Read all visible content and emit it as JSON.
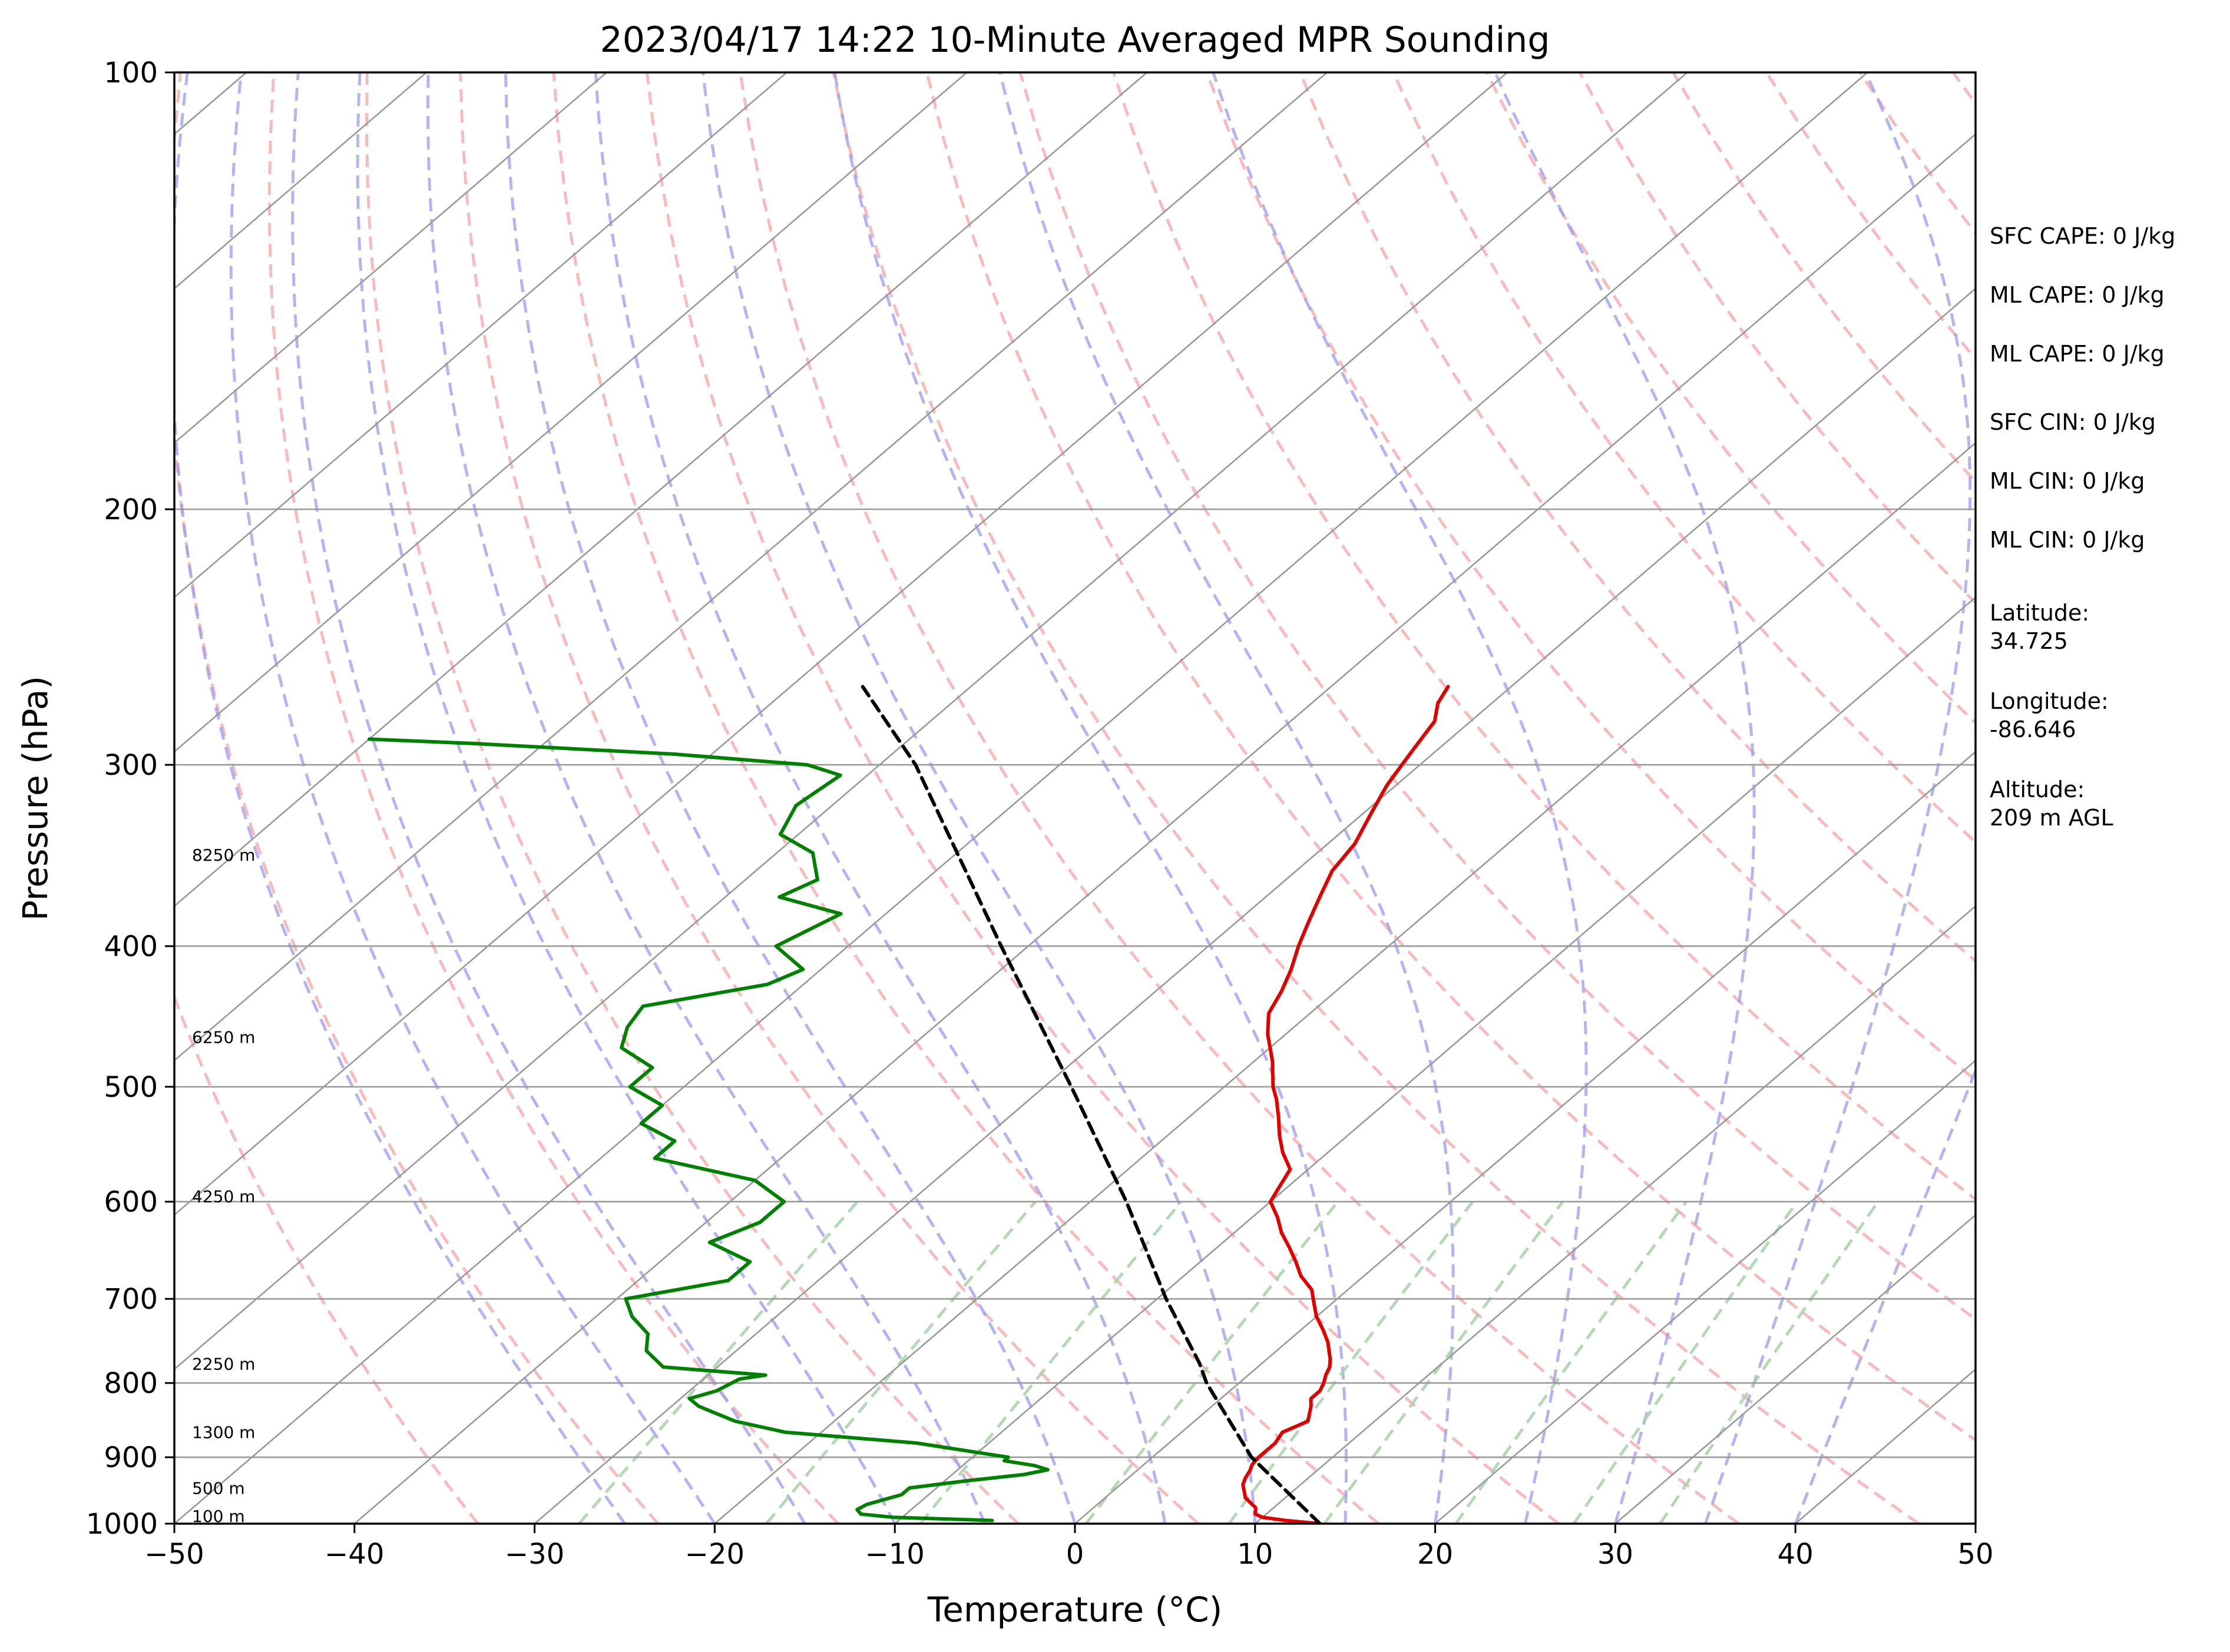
{
  "chart_data": {
    "type": "line",
    "title": "2023/04/17 14:22 10-Minute Averaged MPR Sounding",
    "xlabel": "Temperature (°C)",
    "ylabel": "Pressure (hPa)",
    "xlim": [
      -50,
      50
    ],
    "ylim": [
      1000,
      100
    ],
    "y_scale": "log",
    "skew_degrees_per_decade": 94,
    "x_ticks": [
      -50,
      -40,
      -30,
      -20,
      -10,
      0,
      10,
      20,
      30,
      40,
      50
    ],
    "x_tick_labels": [
      "−50",
      "−40",
      "−30",
      "−20",
      "−10",
      "0",
      "10",
      "20",
      "30",
      "40",
      "50"
    ],
    "y_ticks": [
      1000,
      900,
      800,
      700,
      600,
      500,
      400,
      300,
      200,
      100
    ],
    "y_tick_labels": [
      "1000",
      "900",
      "800",
      "700",
      "600",
      "500",
      "400",
      "300",
      "200",
      "100"
    ],
    "grid": true,
    "colors": {
      "temperature": "#e00000",
      "dewpoint": "#008000",
      "parcel": "#000000",
      "isotherm": "#999999",
      "dry_adiabat": "#f5a3a3",
      "moist_adiabat": "#9b9bf0",
      "mixing_ratio": "#a5d3a5"
    },
    "series": [
      {
        "key": "temperature",
        "p": [
          1000,
          995,
          990,
          985,
          975,
          960,
          950,
          940,
          930,
          920,
          910,
          900,
          880,
          865,
          850,
          840,
          830,
          820,
          810,
          800,
          790,
          780,
          770,
          760,
          750,
          735,
          720,
          705,
          690,
          675,
          660,
          645,
          630,
          615,
          600,
          585,
          570,
          555,
          540,
          525,
          510,
          500,
          480,
          460,
          445,
          430,
          415,
          400,
          385,
          370,
          355,
          340,
          325,
          310,
          300,
          290,
          280,
          272,
          265
        ],
        "t": [
          13.6,
          11.5,
          10.0,
          9.4,
          9.0,
          7.8,
          7.3,
          6.8,
          6.5,
          6.3,
          6.0,
          5.9,
          5.9,
          5.6,
          6.3,
          5.9,
          5.5,
          5.0,
          5.0,
          4.7,
          4.3,
          4.0,
          3.5,
          2.9,
          2.3,
          1.2,
          0.0,
          -1.0,
          -2.0,
          -3.5,
          -4.7,
          -6.0,
          -7.4,
          -8.6,
          -10.0,
          -10.5,
          -11.0,
          -12.5,
          -13.8,
          -15.0,
          -16.3,
          -17.3,
          -19.0,
          -21.0,
          -22.3,
          -23.0,
          -23.9,
          -25.0,
          -26.0,
          -27.0,
          -28.0,
          -28.5,
          -29.5,
          -30.5,
          -31.0,
          -31.5,
          -32.0,
          -33.0,
          -33.5
        ]
      },
      {
        "key": "dewpoint",
        "p": [
          995,
          990,
          985,
          978,
          970,
          955,
          945,
          935,
          925,
          918,
          912,
          905,
          900,
          880,
          865,
          850,
          840,
          830,
          820,
          810,
          795,
          790,
          780,
          760,
          740,
          720,
          700,
          680,
          660,
          640,
          620,
          600,
          580,
          560,
          545,
          530,
          515,
          500,
          485,
          470,
          455,
          440,
          425,
          415,
          400,
          380,
          370,
          360,
          345,
          335,
          320,
          305,
          300,
          295,
          290,
          288
        ],
        "t": [
          -4.8,
          -10.5,
          -12.5,
          -13.0,
          -12.8,
          -11.5,
          -11.5,
          -9.0,
          -6.0,
          -5.0,
          -6.0,
          -8.0,
          -8.0,
          -14.0,
          -22.0,
          -25.5,
          -27.0,
          -28.5,
          -29.5,
          -28.5,
          -28.0,
          -26.8,
          -33.0,
          -35.0,
          -36.0,
          -38.0,
          -39.5,
          -35.0,
          -35.0,
          -38.5,
          -37.0,
          -37.0,
          -40.0,
          -47.0,
          -47.0,
          -50.0,
          -50.0,
          -53.0,
          -53.0,
          -56.0,
          -57.0,
          -57.5,
          -52.0,
          -51.0,
          -54.0,
          -52.5,
          -57.0,
          -56.0,
          -58.0,
          -61.0,
          -62.0,
          -61.5,
          -64.0,
          -72.0,
          -84.0,
          -90.0
        ]
      },
      {
        "key": "parcel",
        "p": [
          1000,
          900,
          800,
          775,
          700,
          600,
          500,
          400,
          300,
          265
        ],
        "t": [
          13.6,
          5.5,
          -1.8,
          -3.5,
          -9.5,
          -18.0,
          -28.5,
          -41.5,
          -58.0,
          -66.0
        ]
      }
    ],
    "height_labels": [
      {
        "label": "100 m",
        "p": 988
      },
      {
        "label": "500 m",
        "p": 945
      },
      {
        "label": "1300 m",
        "p": 865
      },
      {
        "label": "2250 m",
        "p": 776
      },
      {
        "label": "4250 m",
        "p": 595
      },
      {
        "label": "6250 m",
        "p": 462
      },
      {
        "label": "8250 m",
        "p": 346
      }
    ]
  },
  "indices": [
    "SFC CAPE: 0 J/kg",
    "ML CAPE: 0 J/kg",
    "ML CAPE: 0 J/kg",
    "SFC CIN: 0 J/kg",
    "ML CIN: 0 J/kg",
    "ML CIN: 0 J/kg"
  ],
  "location": {
    "lat_label": "Latitude:",
    "lat_value": "34.725",
    "lon_label": "Longitude:",
    "lon_value": "-86.646",
    "alt_label": "Altitude:",
    "alt_value": "209 m AGL"
  }
}
